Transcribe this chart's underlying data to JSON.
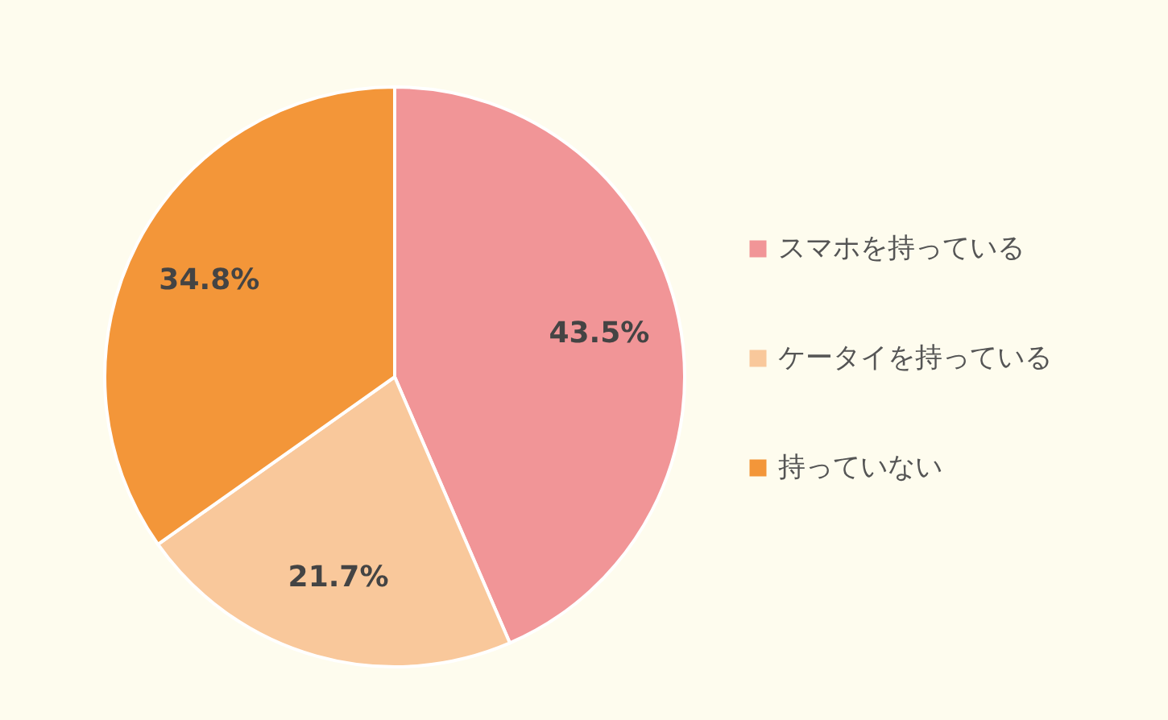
{
  "chart_data": {
    "type": "pie",
    "categories": [
      "スマホを持っている",
      "ケータイを持っている",
      "持っていない"
    ],
    "values": [
      43.5,
      21.7,
      34.8
    ],
    "colors": [
      "#f19597",
      "#f9c89b",
      "#f39639"
    ],
    "value_labels": [
      "43.5%",
      "21.7%",
      "34.8%"
    ],
    "legend": "right"
  }
}
